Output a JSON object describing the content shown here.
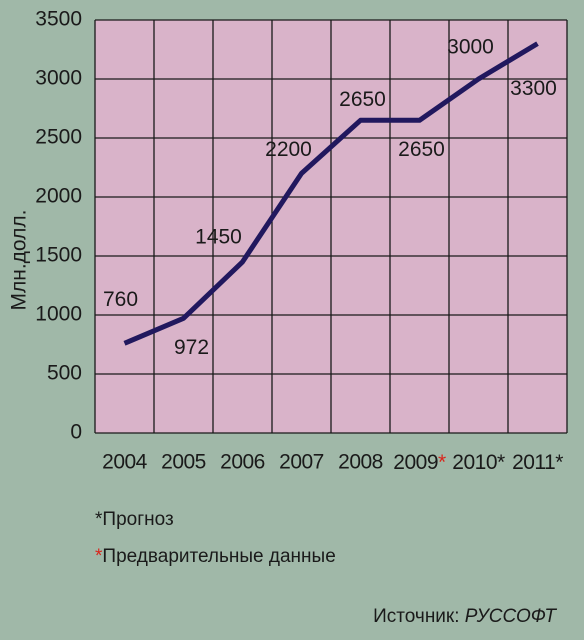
{
  "chart_data": {
    "type": "line",
    "y_label": "Млн.долл.",
    "categories": [
      "2004",
      "2005",
      "2006",
      "2007",
      "2008",
      "2009*",
      "2010*",
      "2011*"
    ],
    "category_mark_colors": [
      null,
      null,
      null,
      null,
      null,
      "#d9261c",
      "#1a1a1a",
      "#1a1a1a"
    ],
    "values": [
      760,
      972,
      1450,
      2200,
      2650,
      2650,
      3000,
      3300
    ],
    "color": "#21185e",
    "ylim": [
      0,
      3500
    ],
    "yticks": [
      0,
      500,
      1000,
      1500,
      2000,
      2500,
      3000,
      3500
    ],
    "grid": true,
    "notes": [
      {
        "mark": "*",
        "text": "Прогноз",
        "color": "#1a1a1a"
      },
      {
        "mark": "*",
        "text": "Предварительные данные",
        "color": "#d9261c"
      }
    ],
    "source_label": "Источник:",
    "source_name": "РУССОФТ"
  }
}
